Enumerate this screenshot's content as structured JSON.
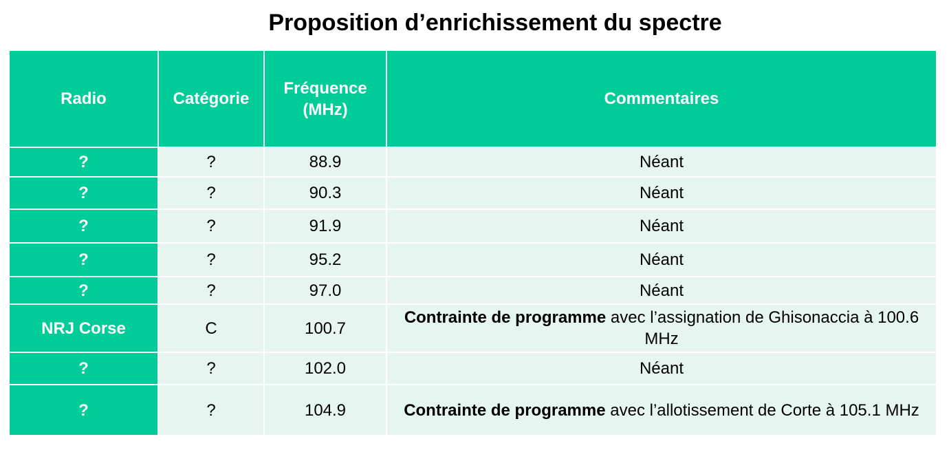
{
  "title": "Proposition d’enrichissement du spectre",
  "colors": {
    "header": "#00CC99",
    "row": "#E6F5EF"
  },
  "headers": [
    "Radio",
    "Catégorie",
    "Fréquence (MHz)",
    "Commentaires"
  ],
  "rows": [
    {
      "radio": "?",
      "categorie": "?",
      "frequence": "88.9",
      "comment_bold": "",
      "comment": "Néant"
    },
    {
      "radio": "?",
      "categorie": "?",
      "frequence": "90.3",
      "comment_bold": "",
      "comment": "Néant"
    },
    {
      "radio": "?",
      "categorie": "?",
      "frequence": "91.9",
      "comment_bold": "",
      "comment": "Néant"
    },
    {
      "radio": "?",
      "categorie": "?",
      "frequence": "95.2",
      "comment_bold": "",
      "comment": "Néant"
    },
    {
      "radio": "?",
      "categorie": "?",
      "frequence": "97.0",
      "comment_bold": "",
      "comment": "Néant"
    },
    {
      "radio": "NRJ Corse",
      "categorie": "C",
      "frequence": "100.7",
      "comment_bold": "Contrainte de programme",
      "comment": " avec l’assignation de Ghisonaccia à 100.6 MHz"
    },
    {
      "radio": "?",
      "categorie": "?",
      "frequence": "102.0",
      "comment_bold": "",
      "comment": "Néant"
    },
    {
      "radio": "?",
      "categorie": "?",
      "frequence": "104.9",
      "comment_bold": "Contrainte de programme",
      "comment": " avec l’allotissement de Corte à 105.1 MHz"
    }
  ]
}
